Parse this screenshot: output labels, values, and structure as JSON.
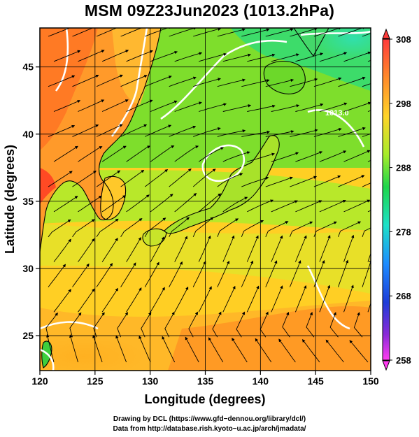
{
  "title": "MSM 09Z23Jun2023 (1013.2hPa)",
  "map": {
    "xlabel": "Longitude (degrees)",
    "ylabel": "Latitude  (degrees)",
    "lon_range": [
      120,
      150
    ],
    "lat_range": [
      22.4,
      47.9
    ],
    "lon_ticks": [
      "120",
      "125",
      "130",
      "135",
      "140",
      "145",
      "150"
    ],
    "lat_ticks": [
      "25",
      "30",
      "35",
      "40",
      "45"
    ],
    "contour_label": "1013.0"
  },
  "colorbar": {
    "min": 258,
    "max": 308,
    "labels": [
      "308",
      "298",
      "288",
      "278",
      "268",
      "258"
    ],
    "colors": [
      "#ff3b3b",
      "#ff8a2a",
      "#ffd428",
      "#a6ec2a",
      "#1ed64a",
      "#1ee0c8",
      "#1e8cff",
      "#1e3cd8",
      "#8a2ad8",
      "#ff3cf0"
    ]
  },
  "credits": {
    "line1": "Drawing by DCL (https://www.gfd−dennou.org/library/dcl/)",
    "line2": "Data from http://database.rish.kyoto−u.ac.jp/arch/jmadata/"
  }
}
